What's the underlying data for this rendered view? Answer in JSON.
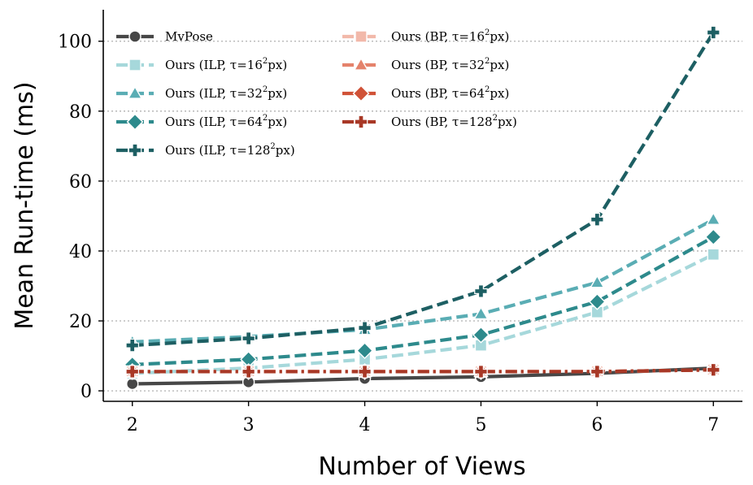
{
  "chart_data": {
    "type": "line",
    "xlabel": "Number of Views",
    "ylabel": "Mean Run-time (ms)",
    "x": [
      2,
      3,
      4,
      5,
      6,
      7
    ],
    "xlim": [
      1.75,
      7.25
    ],
    "ylim": [
      -3,
      109
    ],
    "xticks": [
      2,
      3,
      4,
      5,
      6,
      7
    ],
    "yticks": [
      0,
      20,
      40,
      60,
      80,
      100
    ],
    "grid": "horizontal-dotted",
    "legend_position": "top-left",
    "series": [
      {
        "name": "MvPose",
        "values": [
          2,
          2.5,
          3.5,
          4,
          5,
          6.5
        ],
        "color": "#474747",
        "marker": "circle",
        "dash": "solid"
      },
      {
        "name": "Ours (ILP, τ=16²px)",
        "name_base": "Ours (ILP, τ=16",
        "name_sup": "2",
        "name_tail": "px)",
        "values": [
          5,
          6.5,
          9,
          13,
          22.5,
          39
        ],
        "color": "#a6d8db",
        "marker": "square",
        "dash": "dashed"
      },
      {
        "name": "Ours (ILP, τ=32²px)",
        "name_base": "Ours (ILP, τ=32",
        "name_sup": "2",
        "name_tail": "px)",
        "values": [
          14,
          15.5,
          17.5,
          22,
          31,
          49
        ],
        "color": "#5aadb4",
        "marker": "triangle",
        "dash": "dashed"
      },
      {
        "name": "Ours (ILP, τ=64²px)",
        "name_base": "Ours (ILP, τ=64",
        "name_sup": "2",
        "name_tail": "px)",
        "values": [
          7.5,
          9,
          11.5,
          16,
          25.5,
          44
        ],
        "color": "#2d8a8c",
        "marker": "diamond",
        "dash": "dashed"
      },
      {
        "name": "Ours (ILP, τ=128²px)",
        "name_base": "Ours (ILP, τ=128",
        "name_sup": "2",
        "name_tail": "px)",
        "values": [
          13,
          15,
          18,
          28.5,
          49,
          102.5
        ],
        "color": "#1d5f63",
        "marker": "plus",
        "dash": "dashed"
      },
      {
        "name": "Ours (BP, τ=16²px)",
        "name_base": "Ours (BP, τ=16",
        "name_sup": "2",
        "name_tail": "px)",
        "values": [
          5.5,
          5.5,
          5.5,
          5.5,
          5.5,
          6
        ],
        "color": "#f2b9aa",
        "marker": "square",
        "dash": "dashdot"
      },
      {
        "name": "Ours (BP, τ=32²px)",
        "name_base": "Ours (BP, τ=32",
        "name_sup": "2",
        "name_tail": "px)",
        "values": [
          5.5,
          5.5,
          5.5,
          5.5,
          5.5,
          6
        ],
        "color": "#e4826b",
        "marker": "triangle",
        "dash": "dashdot"
      },
      {
        "name": "Ours (BP, τ=64²px)",
        "name_base": "Ours (BP, τ=64",
        "name_sup": "2",
        "name_tail": "px)",
        "values": [
          5.5,
          5.5,
          5.5,
          5.5,
          5.5,
          6
        ],
        "color": "#d05237",
        "marker": "diamond",
        "dash": "dashdot"
      },
      {
        "name": "Ours (BP, τ=128²px)",
        "name_base": "Ours (BP, τ=128",
        "name_sup": "2",
        "name_tail": "px)",
        "values": [
          5.5,
          5.5,
          5.5,
          5.5,
          5.5,
          6
        ],
        "color": "#a83826",
        "marker": "plus",
        "dash": "dashdot"
      }
    ]
  }
}
